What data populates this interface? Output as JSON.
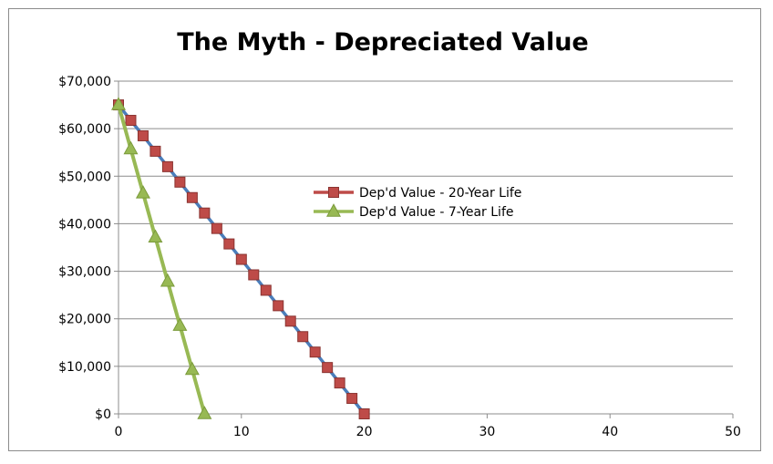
{
  "chart_data": {
    "type": "line",
    "title": "The Myth - Depreciated Value",
    "xlabel": "",
    "ylabel": "",
    "xlim": [
      0,
      50
    ],
    "ylim": [
      0,
      70000
    ],
    "x_ticks": [
      0,
      10,
      20,
      30,
      40,
      50
    ],
    "y_ticks": [
      0,
      10000,
      20000,
      30000,
      40000,
      50000,
      60000,
      70000
    ],
    "x_tick_labels": [
      "0",
      "10",
      "20",
      "30",
      "40",
      "50"
    ],
    "y_tick_labels": [
      "$0",
      "$10,000",
      "$20,000",
      "$30,000",
      "$40,000",
      "$50,000",
      "$60,000",
      "$70,000"
    ],
    "grid": "horizontal",
    "legend_position": "center",
    "series": [
      {
        "name": "Dep'd Value - 20-Year Life",
        "marker": "square",
        "line_color": "#4a7ebb",
        "marker_color": "#be4b48",
        "x": [
          0,
          1,
          2,
          3,
          4,
          5,
          6,
          7,
          8,
          9,
          10,
          11,
          12,
          13,
          14,
          15,
          16,
          17,
          18,
          19,
          20
        ],
        "values": [
          65000,
          61750,
          58500,
          55250,
          52000,
          48750,
          45500,
          42250,
          39000,
          35750,
          32500,
          29250,
          26000,
          22750,
          19500,
          16250,
          13000,
          9750,
          6500,
          3250,
          0
        ]
      },
      {
        "name": "Dep'd Value - 7-Year Life",
        "marker": "triangle",
        "line_color": "#98b954",
        "marker_color": "#98b954",
        "x": [
          0,
          1,
          2,
          3,
          4,
          5,
          6,
          7
        ],
        "values": [
          65000,
          55714,
          46429,
          37143,
          27857,
          18571,
          9286,
          0
        ]
      }
    ]
  }
}
